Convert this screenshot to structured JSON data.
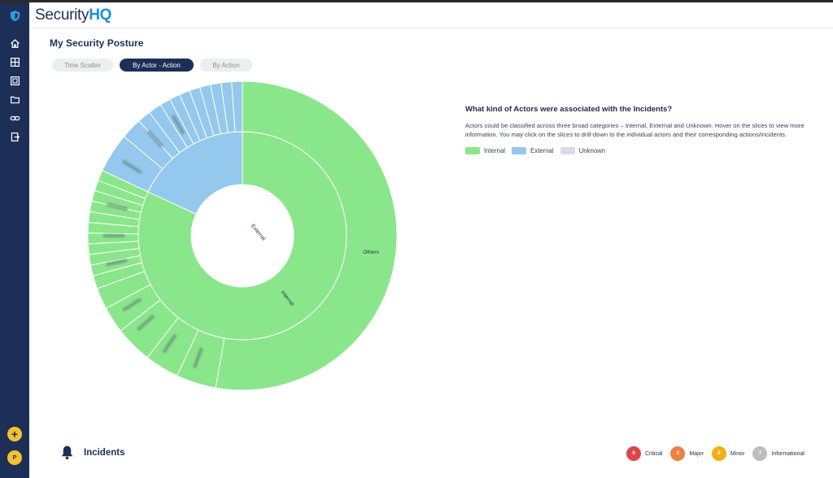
{
  "app": {
    "logo_main": "Security",
    "logo_accent": "HQ"
  },
  "sidebar": {
    "items": [
      {
        "icon": "home-icon"
      },
      {
        "icon": "grid-icon"
      },
      {
        "icon": "widget-icon"
      },
      {
        "icon": "folder-icon"
      },
      {
        "icon": "link-icon"
      },
      {
        "icon": "exit-icon"
      }
    ],
    "add_label": "+",
    "profile_label": "P"
  },
  "page": {
    "title": "My Security Posture"
  },
  "tabs": [
    {
      "label": "Time Scatter",
      "active": false
    },
    {
      "label": "By Actor - Action",
      "active": true
    },
    {
      "label": "By Action",
      "active": false
    }
  ],
  "colors": {
    "internal": "#8ae68a",
    "external": "#94c8ec",
    "unknown": "#d9dce6",
    "navy": "#1d2f57"
  },
  "chart_data": {
    "type": "sunburst",
    "inner_ring": [
      {
        "label": "Internal",
        "category": "Internal",
        "share": 0.82
      },
      {
        "label": "External",
        "category": "External",
        "share": 0.18
      }
    ],
    "outer_ring_labels": [
      "Others"
    ],
    "legend": [
      "Internal",
      "External",
      "Unknown"
    ],
    "legend_position": "right"
  },
  "info": {
    "title": "What kind of Actors were associated with the Incidents?",
    "text": "Actors could be classified across three broad categories – Internal, External and Unknown. Hover on the slices to view more information. You may click on the slices to drill-down to the individual actors and their corresponding actions/incidents."
  },
  "incidents": {
    "title": "Incidents"
  },
  "severity": [
    {
      "label": "Critical",
      "count": "0",
      "color": "#e04545"
    },
    {
      "label": "Major",
      "count": "2",
      "color": "#ee8044"
    },
    {
      "label": "Minor",
      "count": "9",
      "color": "#f5ae18"
    },
    {
      "label": "Informational",
      "count": "7",
      "color": "#bdbdbd"
    }
  ]
}
